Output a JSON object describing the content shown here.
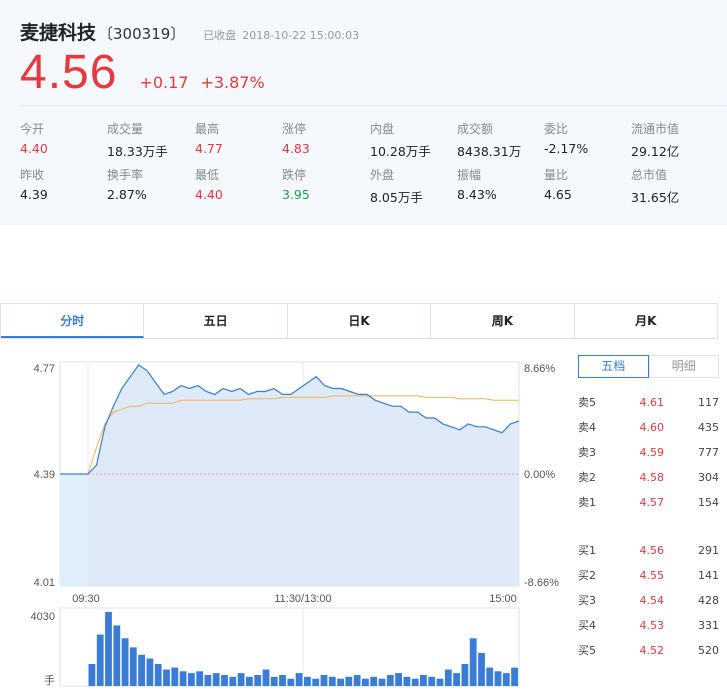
{
  "header": {
    "name": "麦捷科技",
    "code": "〔300319〕",
    "status": "已收盘",
    "datetime": "2018-10-22  15:00:03",
    "price": "4.56",
    "change": "+0.17",
    "change_pct": "+3.87%"
  },
  "stats": [
    {
      "label": "今开",
      "value": "4.40",
      "color": "red"
    },
    {
      "label": "成交量",
      "value": "18.33万手",
      "color": ""
    },
    {
      "label": "最高",
      "value": "4.77",
      "color": "red"
    },
    {
      "label": "涨停",
      "value": "4.83",
      "color": "red"
    },
    {
      "label": "内盘",
      "value": "10.28万手",
      "color": ""
    },
    {
      "label": "成交额",
      "value": "8438.31万",
      "color": ""
    },
    {
      "label": "委比",
      "value": "-2.17%",
      "color": ""
    },
    {
      "label": "流通市值",
      "value": "29.12亿",
      "color": ""
    },
    {
      "label": "昨收",
      "value": "4.39",
      "color": ""
    },
    {
      "label": "换手率",
      "value": "2.87%",
      "color": ""
    },
    {
      "label": "最低",
      "value": "4.40",
      "color": "red"
    },
    {
      "label": "跌停",
      "value": "3.95",
      "color": "green"
    },
    {
      "label": "外盘",
      "value": "8.05万手",
      "color": ""
    },
    {
      "label": "振幅",
      "value": "8.43%",
      "color": ""
    },
    {
      "label": "量比",
      "value": "4.65",
      "color": ""
    },
    {
      "label": "总市值",
      "value": "31.65亿",
      "color": ""
    }
  ],
  "tabs": [
    "分时",
    "五日",
    "日K",
    "周K",
    "月K"
  ],
  "book_tabs": [
    "五档",
    "明细"
  ],
  "sell": [
    {
      "label": "卖5",
      "price": "4.61",
      "vol": "117"
    },
    {
      "label": "卖4",
      "price": "4.60",
      "vol": "435"
    },
    {
      "label": "卖3",
      "price": "4.59",
      "vol": "777"
    },
    {
      "label": "卖2",
      "price": "4.58",
      "vol": "304"
    },
    {
      "label": "卖1",
      "price": "4.57",
      "vol": "154"
    }
  ],
  "buy": [
    {
      "label": "买1",
      "price": "4.56",
      "vol": "291"
    },
    {
      "label": "买2",
      "price": "4.55",
      "vol": "141"
    },
    {
      "label": "买3",
      "price": "4.54",
      "vol": "428"
    },
    {
      "label": "买4",
      "price": "4.53",
      "vol": "331"
    },
    {
      "label": "买5",
      "price": "4.52",
      "vol": "520"
    }
  ],
  "colors": {
    "up": "#e8383d",
    "down": "#1aa34a",
    "line": "#3a7dd6",
    "avg": "#f0b45a",
    "fill": "#deeaf8"
  },
  "chart_data": {
    "type": "line",
    "price_axis": {
      "top": "4.77",
      "mid": "4.39",
      "bottom": "4.01",
      "min": 4.01,
      "max": 4.77,
      "prev_close": 4.39
    },
    "pct_axis": {
      "top": "8.66%",
      "mid": "0.00%",
      "bottom": "-8.66%"
    },
    "time_labels": [
      "09:30",
      "11:30/13:00",
      "15:00"
    ],
    "volume_axis": {
      "max_label": "4030",
      "unit": "手",
      "max": 4030
    },
    "price_series": [
      4.39,
      4.42,
      4.55,
      4.62,
      4.68,
      4.72,
      4.76,
      4.74,
      4.7,
      4.66,
      4.67,
      4.69,
      4.68,
      4.69,
      4.67,
      4.66,
      4.68,
      4.67,
      4.68,
      4.66,
      4.67,
      4.67,
      4.68,
      4.66,
      4.66,
      4.68,
      4.7,
      4.72,
      4.69,
      4.68,
      4.68,
      4.67,
      4.66,
      4.66,
      4.64,
      4.63,
      4.62,
      4.62,
      4.6,
      4.6,
      4.58,
      4.58,
      4.56,
      4.55,
      4.54,
      4.56,
      4.55,
      4.55,
      4.54,
      4.53,
      4.56,
      4.57
    ],
    "avg_series": [
      4.39,
      4.48,
      4.56,
      4.6,
      4.61,
      4.62,
      4.62,
      4.63,
      4.63,
      4.63,
      4.63,
      4.64,
      4.64,
      4.64,
      4.64,
      4.64,
      4.64,
      4.64,
      4.64,
      4.645,
      4.645,
      4.645,
      4.645,
      4.65,
      4.65,
      4.65,
      4.65,
      4.65,
      4.65,
      4.655,
      4.655,
      4.655,
      4.655,
      4.655,
      4.655,
      4.655,
      4.655,
      4.655,
      4.655,
      4.655,
      4.65,
      4.65,
      4.65,
      4.65,
      4.645,
      4.645,
      4.645,
      4.645,
      4.64,
      4.64,
      4.64,
      4.64
    ],
    "volume_series": [
      1200,
      2800,
      4030,
      3300,
      2600,
      2100,
      1700,
      1500,
      1200,
      900,
      1000,
      800,
      700,
      800,
      600,
      700,
      600,
      500,
      700,
      500,
      600,
      900,
      500,
      600,
      400,
      700,
      500,
      400,
      600,
      500,
      400,
      500,
      600,
      400,
      500,
      400,
      600,
      700,
      500,
      400,
      600,
      500,
      400,
      900,
      700,
      1200,
      2600,
      1800,
      1000,
      800,
      700,
      1000
    ]
  }
}
